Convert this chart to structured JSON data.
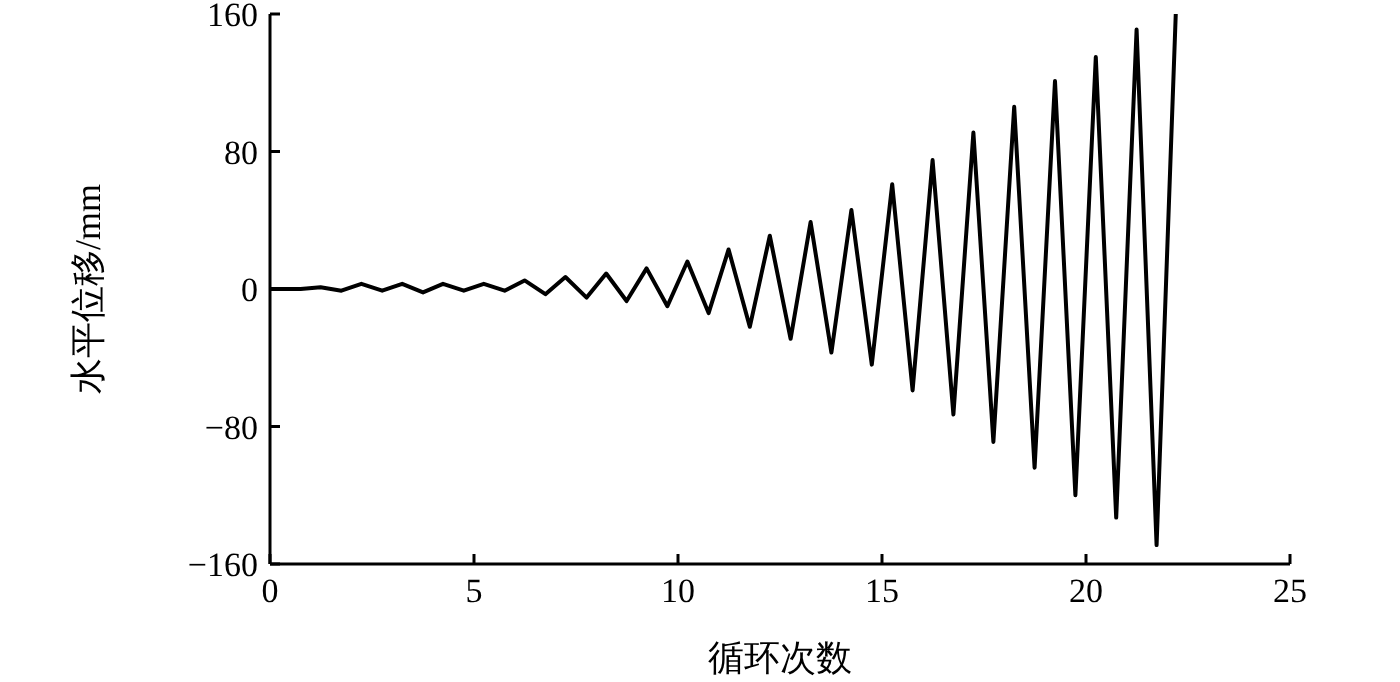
{
  "chart_data": {
    "type": "line",
    "xlabel": "循环次数",
    "ylabel": "水平位移/mm",
    "xlim": [
      0,
      25
    ],
    "ylim": [
      -160,
      160
    ],
    "xticks": [
      0,
      5,
      10,
      15,
      20,
      25
    ],
    "yticks": [
      {
        "value": -160,
        "label": "−160"
      },
      {
        "value": -80,
        "label": "−80"
      },
      0,
      80,
      160
    ],
    "grid": false,
    "marker": "none",
    "line_style": "solid",
    "series": [
      {
        "color": "#000000",
        "x": [
          0,
          0.75,
          1.24,
          1.75,
          2.24,
          2.75,
          3.24,
          3.75,
          4.24,
          4.75,
          5.24,
          5.75,
          6.24,
          6.75,
          7.24,
          7.76,
          8.24,
          8.74,
          9.23,
          9.74,
          10.23,
          10.75,
          11.24,
          11.76,
          12.25,
          12.76,
          13.25,
          13.76,
          14.25,
          14.75,
          15.25,
          15.75,
          16.24,
          16.75,
          17.24,
          17.73,
          18.24,
          18.74,
          19.24,
          19.74,
          20.24,
          20.74,
          21.24,
          21.73,
          22.2
        ],
        "values": [
          0,
          0,
          1,
          -1,
          3,
          -1,
          3,
          -2,
          3,
          -1,
          3,
          -1,
          5,
          -3,
          7,
          -5,
          9,
          -7,
          12,
          -10,
          16,
          -14,
          23,
          -22,
          31,
          -29,
          39,
          -37,
          46,
          -44,
          61,
          -59,
          75,
          -73,
          91,
          -89,
          106,
          -104,
          121,
          -120,
          135,
          -133,
          151,
          -149,
          160
        ]
      }
    ]
  }
}
